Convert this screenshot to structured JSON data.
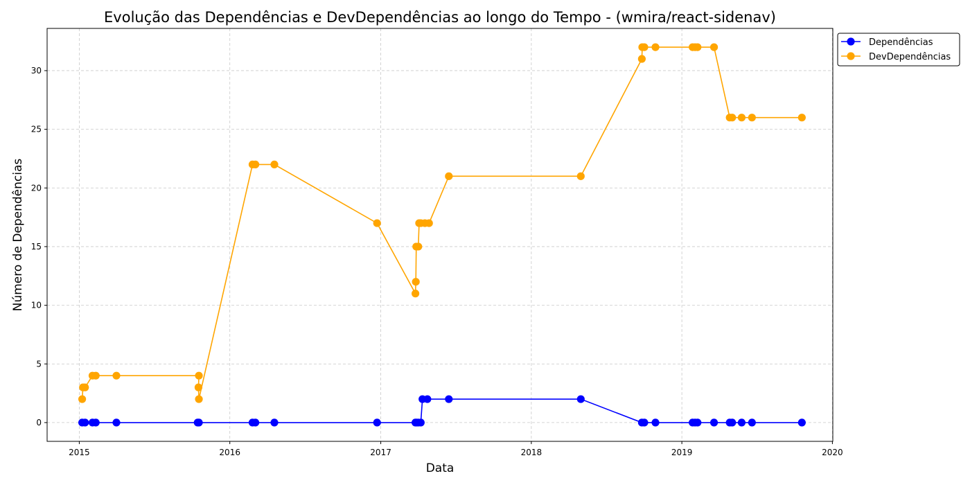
{
  "chart_data": {
    "type": "line",
    "title": "Evolução das Dependências e DevDependências ao longo do Tempo - (wmira/react-sidenav)",
    "xlabel": "Data",
    "ylabel": "Número de Dependências",
    "xlim": [
      "2014-10-15",
      "2020-01-02"
    ],
    "ylim": [
      -1.6,
      33.6
    ],
    "xticks": [
      "2015",
      "2016",
      "2017",
      "2018",
      "2019",
      "2020"
    ],
    "yticks": [
      0,
      5,
      10,
      15,
      20,
      25,
      30
    ],
    "grid": true,
    "legend_position": "upper-right-outside",
    "series": [
      {
        "name": "Dependências",
        "color": "#0000ff",
        "points": [
          {
            "x": "2015-01-08",
            "y": 0
          },
          {
            "x": "2015-01-15",
            "y": 0
          },
          {
            "x": "2015-02-02",
            "y": 0
          },
          {
            "x": "2015-02-10",
            "y": 0
          },
          {
            "x": "2015-04-01",
            "y": 0
          },
          {
            "x": "2015-10-15",
            "y": 0
          },
          {
            "x": "2015-10-18",
            "y": 0
          },
          {
            "x": "2016-02-25",
            "y": 0
          },
          {
            "x": "2016-03-03",
            "y": 0
          },
          {
            "x": "2016-04-18",
            "y": 0
          },
          {
            "x": "2016-12-23",
            "y": 0
          },
          {
            "x": "2017-03-26",
            "y": 0
          },
          {
            "x": "2017-03-29",
            "y": 0
          },
          {
            "x": "2017-04-02",
            "y": 0
          },
          {
            "x": "2017-04-08",
            "y": 0
          },
          {
            "x": "2017-04-12",
            "y": 2
          },
          {
            "x": "2017-04-24",
            "y": 2
          },
          {
            "x": "2017-06-15",
            "y": 2
          },
          {
            "x": "2018-05-01",
            "y": 2
          },
          {
            "x": "2018-09-26",
            "y": 0
          },
          {
            "x": "2018-10-02",
            "y": 0
          },
          {
            "x": "2018-10-29",
            "y": 0
          },
          {
            "x": "2019-01-27",
            "y": 0
          },
          {
            "x": "2019-02-02",
            "y": 0
          },
          {
            "x": "2019-02-08",
            "y": 0
          },
          {
            "x": "2019-03-20",
            "y": 0
          },
          {
            "x": "2019-04-27",
            "y": 0
          },
          {
            "x": "2019-05-03",
            "y": 0
          },
          {
            "x": "2019-05-26",
            "y": 0
          },
          {
            "x": "2019-06-20",
            "y": 0
          },
          {
            "x": "2019-10-19",
            "y": 0
          }
        ]
      },
      {
        "name": "DevDependências",
        "color": "#ffa500",
        "points": [
          {
            "x": "2015-01-08",
            "y": 2
          },
          {
            "x": "2015-01-10",
            "y": 3
          },
          {
            "x": "2015-01-15",
            "y": 3
          },
          {
            "x": "2015-02-02",
            "y": 4
          },
          {
            "x": "2015-02-10",
            "y": 4
          },
          {
            "x": "2015-04-01",
            "y": 4
          },
          {
            "x": "2015-10-18",
            "y": 4
          },
          {
            "x": "2015-10-17",
            "y": 3
          },
          {
            "x": "2015-10-18",
            "y": 2
          },
          {
            "x": "2016-02-25",
            "y": 22
          },
          {
            "x": "2016-03-03",
            "y": 22
          },
          {
            "x": "2016-04-18",
            "y": 22
          },
          {
            "x": "2016-12-23",
            "y": 17
          },
          {
            "x": "2017-03-26",
            "y": 11
          },
          {
            "x": "2017-03-27",
            "y": 12
          },
          {
            "x": "2017-03-28",
            "y": 15
          },
          {
            "x": "2017-04-02",
            "y": 15
          },
          {
            "x": "2017-04-04",
            "y": 17
          },
          {
            "x": "2017-04-08",
            "y": 17
          },
          {
            "x": "2017-04-18",
            "y": 17
          },
          {
            "x": "2017-04-28",
            "y": 17
          },
          {
            "x": "2017-06-15",
            "y": 21
          },
          {
            "x": "2018-05-01",
            "y": 21
          },
          {
            "x": "2018-09-26",
            "y": 31
          },
          {
            "x": "2018-09-27",
            "y": 32
          },
          {
            "x": "2018-10-02",
            "y": 32
          },
          {
            "x": "2018-10-29",
            "y": 32
          },
          {
            "x": "2019-01-27",
            "y": 32
          },
          {
            "x": "2019-02-02",
            "y": 32
          },
          {
            "x": "2019-02-08",
            "y": 32
          },
          {
            "x": "2019-03-20",
            "y": 32
          },
          {
            "x": "2019-04-27",
            "y": 26
          },
          {
            "x": "2019-05-03",
            "y": 26
          },
          {
            "x": "2019-05-26",
            "y": 26
          },
          {
            "x": "2019-06-20",
            "y": 26
          },
          {
            "x": "2019-10-19",
            "y": 26
          }
        ]
      }
    ]
  }
}
